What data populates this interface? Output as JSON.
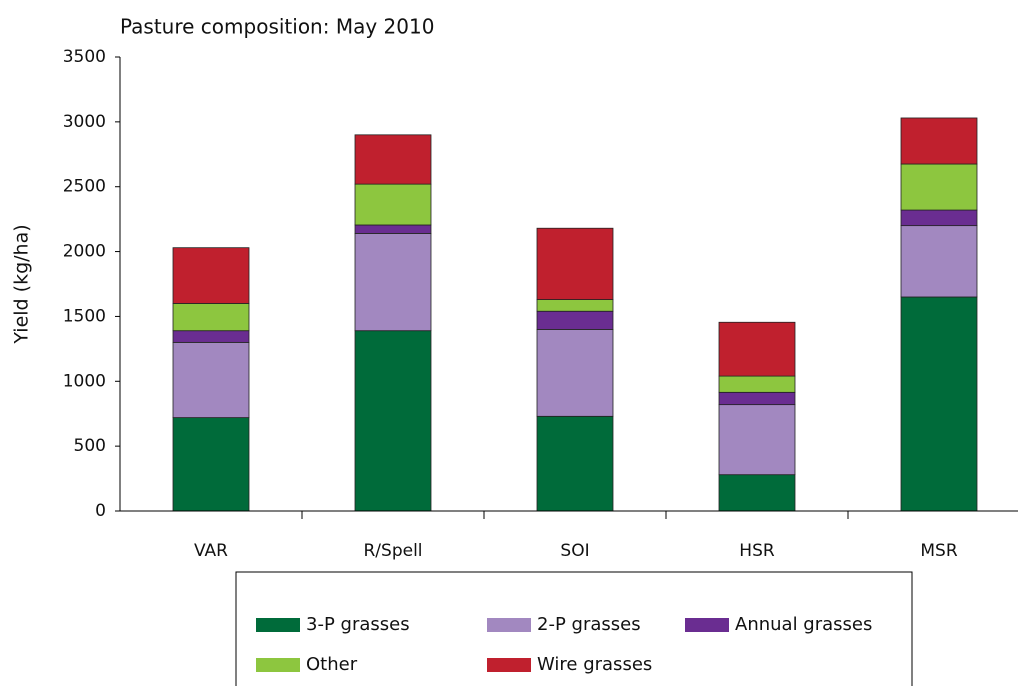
{
  "chart_data": {
    "type": "stacked_bar",
    "title": "Pasture composition: May 2010",
    "y_label": "Yield (kg/ha)",
    "categories": [
      "VAR",
      "R/Spell",
      "SOI",
      "HSR",
      "MSR"
    ],
    "series": [
      {
        "name": "3-P grasses",
        "color": "#006b3a",
        "values": [
          720,
          1390,
          730,
          280,
          1650
        ]
      },
      {
        "name": "2-P grasses",
        "color": "#a288c0",
        "values": [
          580,
          750,
          670,
          540,
          550
        ]
      },
      {
        "name": "Annual grasses",
        "color": "#6a2d91",
        "values": [
          90,
          65,
          140,
          95,
          120
        ]
      },
      {
        "name": "Other",
        "color": "#8dc63f",
        "values": [
          210,
          315,
          90,
          125,
          355
        ]
      },
      {
        "name": "Wire grasses",
        "color": "#c0202e",
        "values": [
          430,
          380,
          550,
          415,
          355
        ]
      }
    ],
    "ylim": [
      0,
      3500
    ],
    "yticks": [
      0,
      500,
      1000,
      1500,
      2000,
      2500,
      3000,
      3500
    ],
    "legend": "bottom"
  }
}
